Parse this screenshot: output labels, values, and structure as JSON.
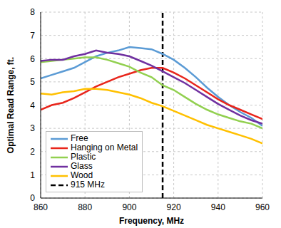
{
  "chart_data": {
    "type": "line",
    "x_label": "Frequency, MHz",
    "y_label": "Optimal Read Range, ft.",
    "x": [
      860,
      865,
      870,
      875,
      880,
      885,
      890,
      895,
      900,
      905,
      910,
      915,
      920,
      925,
      930,
      935,
      940,
      945,
      950,
      955,
      960
    ],
    "series": [
      {
        "name": "Free",
        "color": "#5b9bd5",
        "values": [
          5.15,
          5.3,
          5.45,
          5.6,
          5.85,
          6.1,
          6.25,
          6.35,
          6.5,
          6.45,
          6.4,
          6.2,
          5.95,
          5.6,
          5.2,
          4.75,
          4.35,
          4.0,
          3.7,
          3.45,
          3.1
        ]
      },
      {
        "name": "Hanging on Metal",
        "color": "#e8251b",
        "values": [
          3.8,
          4.0,
          4.1,
          4.3,
          4.55,
          4.8,
          5.0,
          5.2,
          5.35,
          5.5,
          5.6,
          5.6,
          5.4,
          5.15,
          4.85,
          4.55,
          4.25,
          4.0,
          3.8,
          3.6,
          3.4
        ]
      },
      {
        "name": "Plastic",
        "color": "#92d050",
        "values": [
          5.85,
          5.9,
          5.95,
          6.0,
          6.05,
          6.05,
          5.95,
          5.8,
          5.65,
          5.4,
          5.2,
          4.85,
          4.65,
          4.35,
          4.05,
          3.8,
          3.6,
          3.45,
          3.3,
          3.2,
          3.0
        ]
      },
      {
        "name": "Glass",
        "color": "#7030a0",
        "values": [
          5.9,
          5.95,
          5.95,
          6.1,
          6.2,
          6.35,
          6.25,
          6.2,
          6.1,
          5.9,
          5.7,
          5.45,
          5.2,
          4.95,
          4.65,
          4.35,
          4.05,
          3.8,
          3.55,
          3.35,
          3.2
        ]
      },
      {
        "name": "Wood",
        "color": "#ffc000",
        "values": [
          4.5,
          4.45,
          4.55,
          4.6,
          4.7,
          4.7,
          4.65,
          4.55,
          4.45,
          4.3,
          4.1,
          3.95,
          3.75,
          3.55,
          3.35,
          3.15,
          3.0,
          2.85,
          2.7,
          2.55,
          2.35
        ]
      }
    ],
    "reference_lines": [
      {
        "name": "915 MHz",
        "x": 915,
        "color": "#000000",
        "line_style": "dashed"
      }
    ],
    "xlim": [
      860,
      960
    ],
    "ylim": [
      0,
      8
    ],
    "xticks": [
      860,
      880,
      900,
      920,
      940,
      960
    ],
    "yticks": [
      0,
      1,
      2,
      3,
      4,
      5,
      6,
      7,
      8
    ],
    "grid": true,
    "legend": "lower left"
  }
}
